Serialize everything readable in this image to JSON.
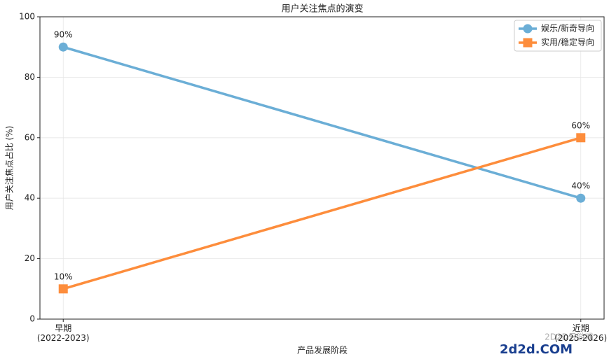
{
  "chart_data": {
    "type": "line",
    "title": "用户关注焦点的演变",
    "x_label": "产品发展阶段",
    "y_label": "用户关注焦点占比 (%)",
    "categories": [
      "早期\n(2022-2023)",
      "近期\n(2025-2026)"
    ],
    "series": [
      {
        "name": "娱乐/新奇导向",
        "color": "#6baed6",
        "marker": "circle",
        "values": [
          90,
          40
        ],
        "value_labels": [
          "90%",
          "40%"
        ]
      },
      {
        "name": "实用/稳定导向",
        "color": "#fd8d3c",
        "marker": "square",
        "values": [
          10,
          60
        ],
        "value_labels": [
          "10%",
          "60%"
        ]
      }
    ],
    "ylim": [
      0,
      100
    ],
    "yticks": [
      0,
      20,
      40,
      60,
      80,
      100
    ],
    "grid": true,
    "legend": "upper right"
  },
  "watermark": {
    "logo": "2d2d.COM",
    "caption": "2D2D云游戏"
  }
}
